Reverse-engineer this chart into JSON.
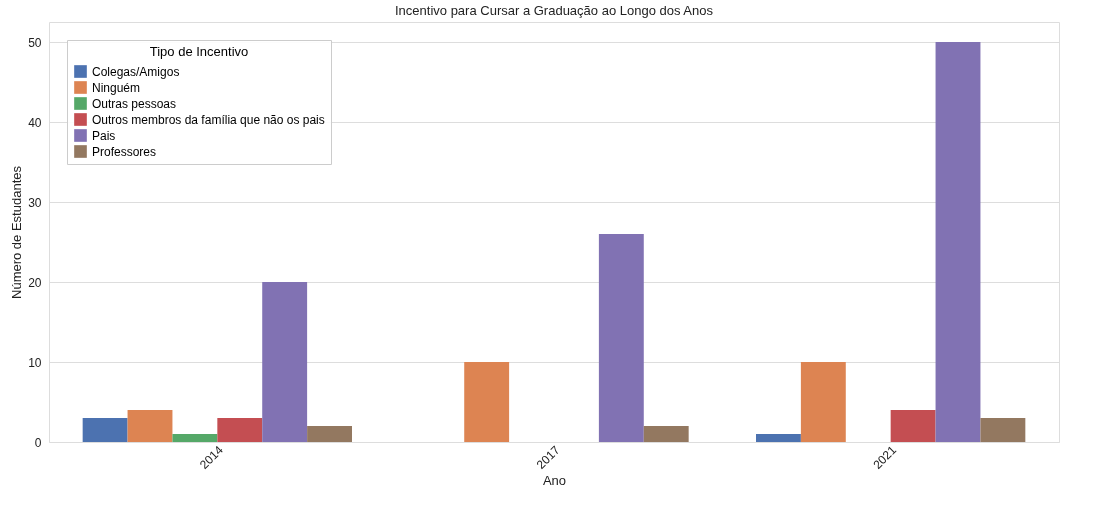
{
  "chart_data": {
    "type": "bar",
    "title": "Incentivo para Cursar a Graduação ao Longo dos Anos",
    "xlabel": "Ano",
    "ylabel": "Número de Estudantes",
    "legend_title": "Tipo de Incentivo",
    "categories": [
      "2014",
      "2017",
      "2021"
    ],
    "series": [
      {
        "name": "Colegas/Amigos",
        "color": "#4c72b0",
        "values": [
          3,
          null,
          1
        ]
      },
      {
        "name": "Ninguém",
        "color": "#dd8452",
        "values": [
          4,
          10,
          10
        ]
      },
      {
        "name": "Outras pessoas",
        "color": "#55a868",
        "values": [
          1,
          null,
          null
        ]
      },
      {
        "name": "Outros membros da família que não os pais",
        "color": "#c44e52",
        "values": [
          3,
          null,
          4
        ]
      },
      {
        "name": "Pais",
        "color": "#8172b3",
        "values": [
          20,
          26,
          50
        ]
      },
      {
        "name": "Professores",
        "color": "#937860",
        "values": [
          2,
          2,
          3
        ]
      }
    ],
    "ylim": [
      0,
      52.5
    ],
    "yticks": [
      0,
      10,
      20,
      30,
      40,
      50
    ],
    "grid": "y",
    "legend": "top left"
  }
}
